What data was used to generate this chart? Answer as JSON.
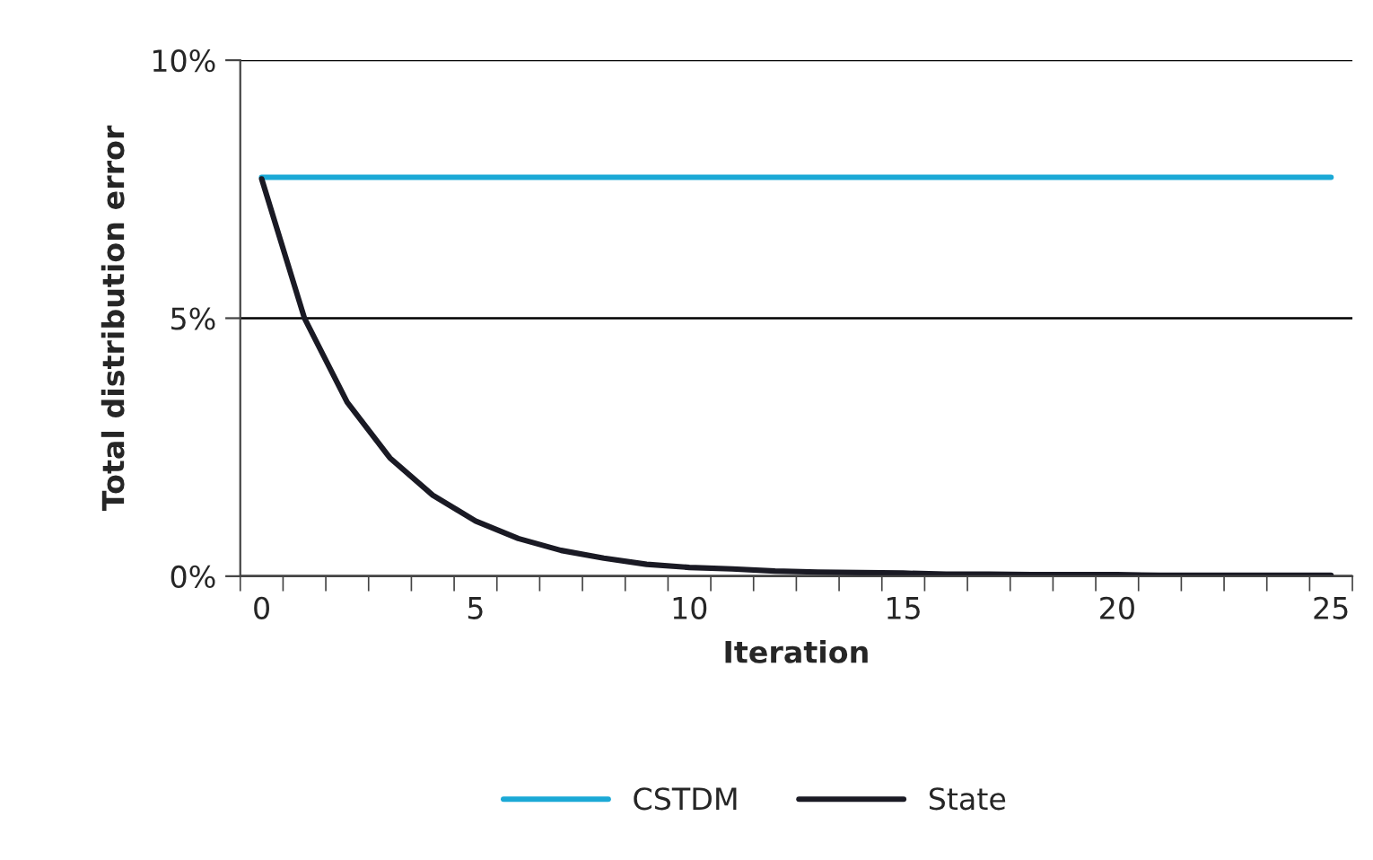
{
  "chart_data": {
    "type": "line",
    "xlabel": "Iteration",
    "ylabel": "Total distribution error",
    "x": [
      0,
      1,
      2,
      3,
      4,
      5,
      6,
      7,
      8,
      9,
      10,
      11,
      12,
      13,
      14,
      15,
      16,
      17,
      18,
      19,
      20,
      21,
      22,
      23,
      24,
      25
    ],
    "series": [
      {
        "name": "CSTDM",
        "color": "#1ba9d6",
        "values": [
          7.73,
          7.73,
          7.73,
          7.73,
          7.73,
          7.73,
          7.73,
          7.73,
          7.73,
          7.73,
          7.73,
          7.73,
          7.73,
          7.73,
          7.73,
          7.73,
          7.73,
          7.73,
          7.73,
          7.73,
          7.73,
          7.73,
          7.73,
          7.73,
          7.73,
          7.73
        ]
      },
      {
        "name": "State",
        "color": "#1a1a24",
        "values": [
          7.7,
          5.0,
          3.37,
          2.29,
          1.57,
          1.07,
          0.73,
          0.5,
          0.35,
          0.23,
          0.17,
          0.14,
          0.1,
          0.08,
          0.07,
          0.06,
          0.04,
          0.04,
          0.03,
          0.03,
          0.03,
          0.02,
          0.02,
          0.02,
          0.02,
          0.02
        ]
      }
    ],
    "xlim": [
      -0.5,
      25.5
    ],
    "xticks": [
      {
        "value": -0.5,
        "label": null
      },
      0,
      {
        "value": 0.5,
        "label": null
      },
      {
        "value": 1.5,
        "label": null
      },
      {
        "value": 2.5,
        "label": null
      },
      {
        "value": 3.5,
        "label": null
      },
      {
        "value": 4.5,
        "label": null
      },
      5,
      {
        "value": 5.5,
        "label": null
      },
      {
        "value": 6.5,
        "label": null
      },
      {
        "value": 7.5,
        "label": null
      },
      {
        "value": 8.5,
        "label": null
      },
      {
        "value": 9.5,
        "label": null
      },
      10,
      {
        "value": 10.5,
        "label": null
      },
      {
        "value": 11.5,
        "label": null
      },
      {
        "value": 12.5,
        "label": null
      },
      {
        "value": 13.5,
        "label": null
      },
      {
        "value": 14.5,
        "label": null
      },
      15,
      {
        "value": 15.5,
        "label": null
      },
      {
        "value": 16.5,
        "label": null
      },
      {
        "value": 17.5,
        "label": null
      },
      {
        "value": 18.5,
        "label": null
      },
      {
        "value": 19.5,
        "label": null
      },
      20,
      {
        "value": 20.5,
        "label": null
      },
      {
        "value": 21.5,
        "label": null
      },
      {
        "value": 22.5,
        "label": null
      },
      {
        "value": 23.5,
        "label": null
      },
      {
        "value": 24.5,
        "label": null
      },
      25,
      {
        "value": 25.5,
        "label": null
      }
    ],
    "ylim": [
      0,
      10
    ],
    "yticks": [
      {
        "value": 0,
        "label": "0%"
      },
      {
        "value": 5,
        "label": "5%"
      },
      {
        "value": 10,
        "label": "10%"
      }
    ],
    "grid": "y",
    "legend": "bottom",
    "marker": "none",
    "line_style": "solid"
  }
}
